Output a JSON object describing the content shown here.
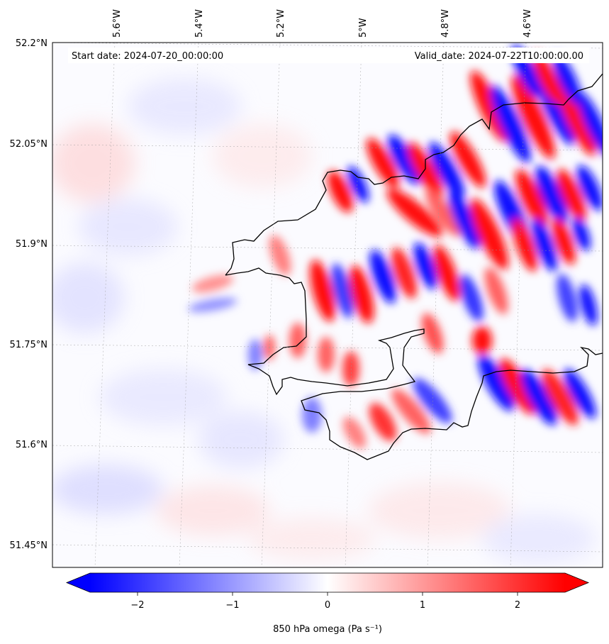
{
  "map": {
    "start_label": "Start date: 2024-07-20_00:00:00",
    "valid_label": "Valid_date: 2024-07-22T10:00:00.00",
    "lat_ticks": [
      "52.2°N",
      "52.05°N",
      "51.9°N",
      "51.75°N",
      "51.6°N",
      "51.45°N"
    ],
    "lon_ticks": [
      "5.6°W",
      "5.4°W",
      "5.2°W",
      "5°W",
      "4.8°W",
      "4.6°W"
    ],
    "field": "850 hPa omega",
    "colormap": "bwr",
    "colors": {
      "negative": "#0000ff",
      "zero": "#ffffff",
      "positive": "#ff0000",
      "coastline": "#000000"
    }
  },
  "colorbar": {
    "ticks": [
      "−2",
      "−1",
      "0",
      "1",
      "2"
    ],
    "label": "850 hPa omega (Pa s⁻¹)",
    "range": [
      -2.6,
      2.6
    ]
  }
}
